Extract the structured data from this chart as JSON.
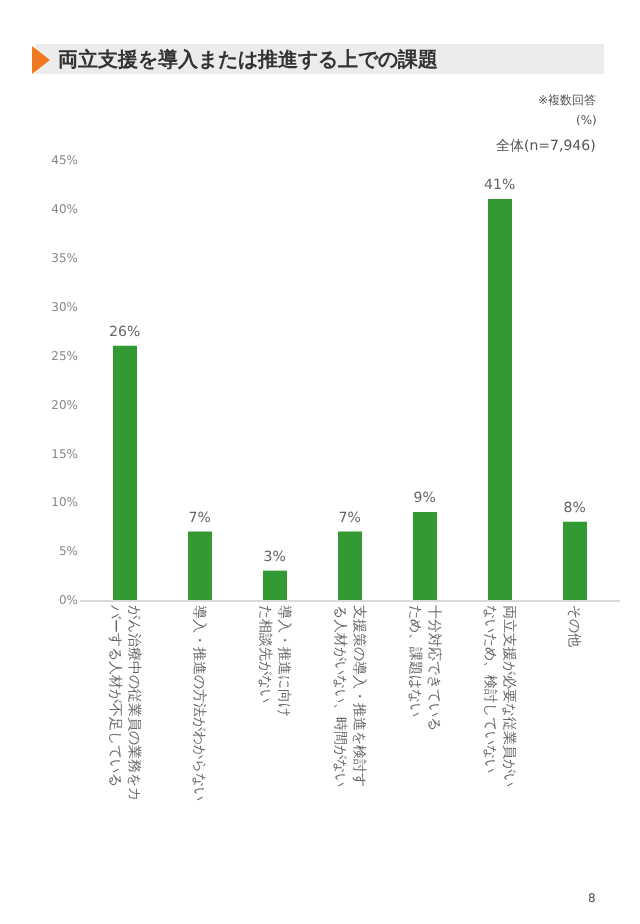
{
  "chart_data": {
    "type": "bar",
    "title": "両立支援を導入または推進する上での課題",
    "categories": [
      "がん治療中の従業員の業務をカバーする人材が不足している",
      "導入・推進の方法がわからない",
      "導入・推進に向けた相談先がない",
      "支援策の導入・推進を検討する人材がいない、時間がない",
      "十分対応できているため、課題はない",
      "両立支援が必要な従業員がいないため、検討していない",
      "その他"
    ],
    "values": [
      26,
      7,
      3,
      7,
      9,
      41,
      8
    ],
    "color": "#339933",
    "value_labels": [
      "26%",
      "7%",
      "3%",
      "7%",
      "9%",
      "41%",
      "8%"
    ],
    "ylim": [
      0,
      45
    ],
    "yticks": [
      {
        "value": 0,
        "label": "0%"
      },
      {
        "value": 5,
        "label": "5%"
      },
      {
        "value": 10,
        "label": "10%"
      },
      {
        "value": 15,
        "label": "15%"
      },
      {
        "value": 20,
        "label": "20%"
      },
      {
        "value": 25,
        "label": "25%"
      },
      {
        "value": 30,
        "label": "30%"
      },
      {
        "value": 35,
        "label": "35%"
      },
      {
        "value": 40,
        "label": "40%"
      },
      {
        "value": 45,
        "label": "45%"
      }
    ],
    "grid": false,
    "legend": false,
    "annotations": [
      "※複数回答",
      "(%)",
      "全体(n=7,946)",
      "8"
    ]
  }
}
